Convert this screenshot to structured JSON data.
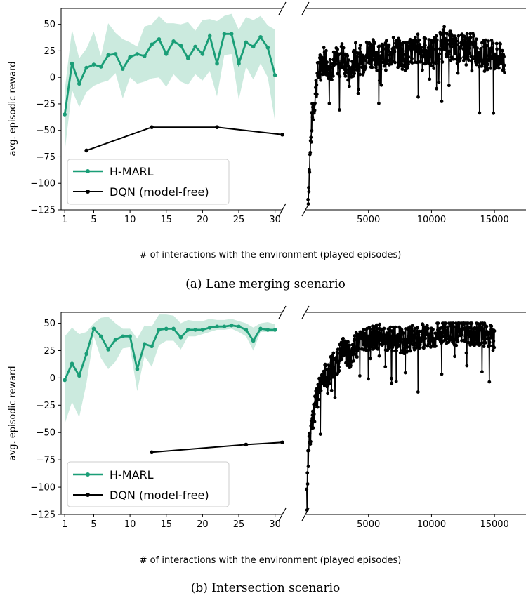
{
  "colors": {
    "hmarl": "#1a9e77",
    "band": "#a8dcc8",
    "dqn": "#000000"
  },
  "chart_data": [
    {
      "type": "line",
      "caption": "(a) Lane merging scenario",
      "ylabel": "avg. episodic reward",
      "xlabel": "# of interactions with the environment (played episodes)",
      "ylim": [
        -125,
        65
      ],
      "yticks": [
        50,
        25,
        0,
        -25,
        -50,
        -75,
        -100,
        -125
      ],
      "left_xlim": [
        0.5,
        31
      ],
      "left_xticks": [
        1,
        5,
        10,
        15,
        20,
        25,
        30
      ],
      "right_xlim": [
        0,
        17500
      ],
      "right_xticks": [
        5000,
        10000,
        15000
      ],
      "legend": {
        "placement": "lower-left",
        "entries": [
          "H-MARL",
          "DQN (model-free)"
        ]
      },
      "hmarl": {
        "name": "H-MARL",
        "x": [
          1,
          2,
          3,
          4,
          5,
          6,
          7,
          8,
          9,
          10,
          11,
          12,
          13,
          14,
          15,
          16,
          17,
          18,
          19,
          20,
          21,
          22,
          23,
          24,
          25,
          26,
          27,
          28,
          29,
          30
        ],
        "y": [
          -35,
          13,
          -6,
          9,
          12,
          10,
          21,
          22,
          8,
          19,
          22,
          20,
          31,
          36,
          22,
          34,
          30,
          18,
          29,
          22,
          39,
          13,
          41,
          41,
          13,
          33,
          29,
          38,
          28,
          2
        ],
        "upper": [
          -12,
          45,
          18,
          27,
          43,
          20,
          51,
          42,
          36,
          33,
          29,
          48,
          50,
          58,
          51,
          51,
          50,
          52,
          44,
          54,
          55,
          53,
          58,
          60,
          45,
          57,
          54,
          58,
          49,
          45
        ],
        "lower": [
          -70,
          -12,
          -28,
          -14,
          -8,
          -5,
          -3,
          4,
          -20,
          0,
          -6,
          -4,
          -1,
          0,
          -9,
          3,
          -4,
          -7,
          3,
          -3,
          6,
          -18,
          21,
          22,
          -21,
          10,
          -2,
          13,
          0,
          -42
        ]
      },
      "dqn": {
        "name": "DQN (model-free)",
        "x": [
          4,
          13,
          22,
          31
        ],
        "y": [
          -69,
          -47,
          -47,
          -54
        ]
      },
      "right_series": {
        "x": [
          200,
          500,
          1000,
          1500,
          2000,
          2500,
          3000,
          3500,
          4000,
          4500,
          5000,
          6000,
          7000,
          8000,
          9000,
          10000,
          11000,
          12000,
          13000,
          14000,
          15000,
          15800
        ],
        "y": [
          -115,
          -40,
          5,
          18,
          10,
          15,
          22,
          0,
          20,
          15,
          25,
          18,
          25,
          20,
          28,
          22,
          35,
          25,
          30,
          22,
          22,
          15
        ],
        "noise": 14
      }
    },
    {
      "type": "line",
      "caption": "(b) Intersection scenario",
      "ylabel": "avg. episodic reward",
      "xlabel": "# of interactions with the environment (played episodes)",
      "ylim": [
        -125,
        60
      ],
      "yticks": [
        50,
        25,
        0,
        -25,
        -50,
        -75,
        -100,
        -125
      ],
      "left_xlim": [
        0.5,
        31
      ],
      "left_xticks": [
        1,
        5,
        10,
        15,
        20,
        25,
        30
      ],
      "right_xlim": [
        0,
        17500
      ],
      "right_xticks": [
        5000,
        10000,
        15000
      ],
      "legend": {
        "placement": "lower-left",
        "entries": [
          "H-MARL",
          "DQN (model-free)"
        ]
      },
      "hmarl": {
        "name": "H-MARL",
        "x": [
          1,
          2,
          3,
          4,
          5,
          6,
          7,
          8,
          9,
          10,
          11,
          12,
          13,
          14,
          15,
          16,
          17,
          18,
          19,
          20,
          21,
          22,
          23,
          24,
          25,
          26,
          27,
          28,
          29,
          30
        ],
        "y": [
          -2,
          13,
          2,
          22,
          45,
          38,
          26,
          35,
          38,
          38,
          8,
          31,
          29,
          44,
          45,
          45,
          37,
          44,
          44,
          44,
          46,
          47,
          47,
          48,
          47,
          44,
          34,
          45,
          44,
          44
        ],
        "upper": [
          38,
          46,
          40,
          42,
          50,
          55,
          56,
          50,
          45,
          45,
          36,
          48,
          47,
          58,
          58,
          57,
          50,
          53,
          52,
          52,
          54,
          53,
          53,
          54,
          52,
          50,
          46,
          50,
          51,
          49
        ],
        "lower": [
          -42,
          -22,
          -36,
          -5,
          38,
          18,
          8,
          15,
          27,
          28,
          -12,
          20,
          10,
          30,
          34,
          34,
          26,
          38,
          38,
          40,
          42,
          44,
          44,
          45,
          42,
          38,
          25,
          42,
          42,
          42
        ]
      },
      "dqn": {
        "name": "DQN (model-free)",
        "x": [
          13,
          26,
          31
        ],
        "y": [
          -68,
          -61,
          -59
        ]
      },
      "right_series": {
        "x": [
          100,
          300,
          700,
          1200,
          1800,
          2500,
          3000,
          3500,
          4000,
          4500,
          5000,
          6000,
          7000,
          8000,
          9000,
          10000,
          11000,
          12000,
          13000,
          14000,
          14500,
          15000
        ],
        "y": [
          -90,
          -60,
          -30,
          -5,
          5,
          15,
          25,
          20,
          30,
          33,
          35,
          38,
          36,
          34,
          38,
          40,
          42,
          41,
          42,
          40,
          40,
          35
        ],
        "noise": 12
      }
    }
  ]
}
